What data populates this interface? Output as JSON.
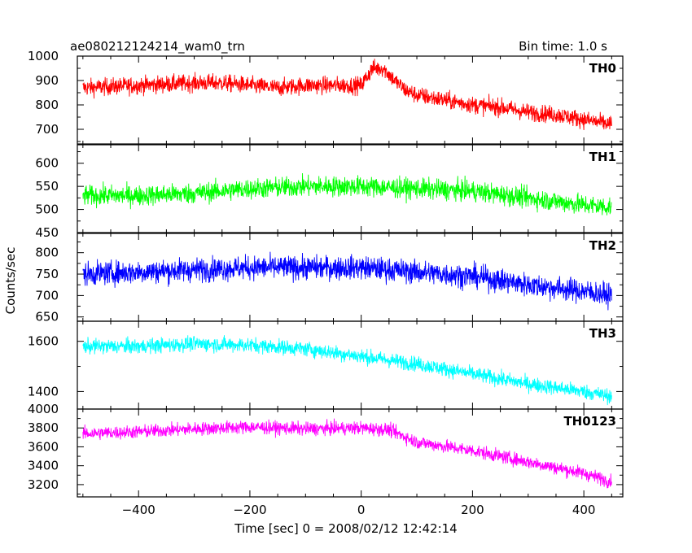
{
  "header": {
    "title": "ae080212124214_wam0_trn",
    "bin_time": "Bin time: 1.0 s"
  },
  "chart_data": {
    "type": "line",
    "xlabel": "Time [sec] 0 = 2008/02/12 12:42:14",
    "ylabel": "Counts/sec",
    "xlim": [
      -510,
      470
    ],
    "xticks": [
      -400,
      -200,
      0,
      200,
      400
    ],
    "series": [
      {
        "name": "TH0",
        "color": "#ff0000",
        "ylim": [
          640,
          1000
        ],
        "yticks": [
          700,
          800,
          900,
          1000
        ],
        "x": [
          -500,
          -450,
          -400,
          -350,
          -300,
          -250,
          -200,
          -150,
          -100,
          -50,
          0,
          20,
          40,
          60,
          80,
          100,
          150,
          200,
          250,
          300,
          350,
          400,
          450
        ],
        "y": [
          870,
          875,
          880,
          885,
          890,
          890,
          880,
          870,
          880,
          880,
          880,
          950,
          950,
          900,
          860,
          840,
          820,
          800,
          790,
          770,
          760,
          740,
          720
        ],
        "spread": 45
      },
      {
        "name": "TH1",
        "color": "#00ff00",
        "ylim": [
          450,
          640
        ],
        "yticks": [
          450,
          500,
          550,
          600
        ],
        "x": [
          -500,
          -400,
          -300,
          -200,
          -100,
          0,
          100,
          200,
          300,
          400,
          450
        ],
        "y": [
          530,
          530,
          535,
          545,
          550,
          550,
          545,
          540,
          525,
          510,
          505
        ],
        "spread": 28
      },
      {
        "name": "TH2",
        "color": "#0000ff",
        "ylim": [
          640,
          845
        ],
        "yticks": [
          650,
          700,
          750,
          800
        ],
        "x": [
          -500,
          -400,
          -300,
          -200,
          -100,
          0,
          100,
          200,
          300,
          400,
          450
        ],
        "y": [
          750,
          755,
          760,
          765,
          765,
          765,
          755,
          745,
          725,
          710,
          700
        ],
        "spread": 35
      },
      {
        "name": "TH3",
        "color": "#00ffff",
        "ylim": [
          1330,
          1680
        ],
        "yticks": [
          1400,
          1600
        ],
        "x": [
          -500,
          -400,
          -300,
          -200,
          -100,
          0,
          100,
          200,
          300,
          400,
          450
        ],
        "y": [
          1580,
          1580,
          1590,
          1585,
          1570,
          1540,
          1510,
          1470,
          1430,
          1400,
          1380
        ],
        "spread": 38
      },
      {
        "name": "TH0123",
        "color": "#ff00ff",
        "ylim": [
          3070,
          4000
        ],
        "yticks": [
          3200,
          3400,
          3600,
          3800,
          4000
        ],
        "x": [
          -500,
          -400,
          -300,
          -200,
          -100,
          0,
          50,
          100,
          200,
          300,
          400,
          450
        ],
        "y": [
          3740,
          3760,
          3790,
          3810,
          3790,
          3800,
          3780,
          3650,
          3560,
          3440,
          3320,
          3230
        ],
        "spread": 90
      }
    ]
  }
}
